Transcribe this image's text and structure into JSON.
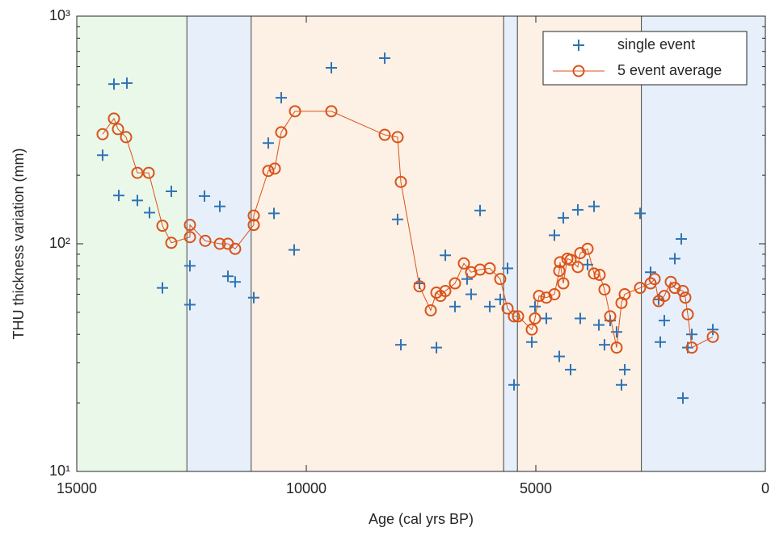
{
  "chart_data": {
    "type": "scatter-line",
    "x_label": "Age (cal yrs BP)",
    "y_label": "THU thickness variation (mm)",
    "xlim": [
      15000,
      0
    ],
    "xticks": [
      15000,
      10000,
      5000,
      0
    ],
    "ylim": [
      10,
      1000
    ],
    "yticks": [
      {
        "value": 10,
        "label": "10¹"
      },
      {
        "value": 100,
        "label": "10²"
      },
      {
        "value": 1000,
        "label": "10³"
      }
    ],
    "y_scale": "log",
    "legend_position": "upper right",
    "bands": [
      {
        "from": 15000,
        "to": 12600,
        "color": "#eaf8ea"
      },
      {
        "from": 12600,
        "to": 11200,
        "color": "#e7f0fa"
      },
      {
        "from": 11200,
        "to": 5700,
        "color": "#fdf0e5"
      },
      {
        "from": 5700,
        "to": 5400,
        "color": "#e7f0fa"
      },
      {
        "from": 5400,
        "to": 2700,
        "color": "#fdf0e5"
      },
      {
        "from": 2700,
        "to": 0,
        "color": "#e7f0fa"
      }
    ],
    "series": [
      {
        "name": "single event",
        "color": "#2f74b5",
        "marker": "plus",
        "x": [
          14437,
          14190,
          13908,
          14085,
          13680,
          13416,
          12940,
          13134,
          12535,
          12535,
          12218,
          11884,
          11708,
          11550,
          11145,
          10828,
          10704,
          10546,
          10264,
          9454,
          8292,
          8011,
          7940,
          7535,
          7165,
          6972,
          6761,
          6497,
          6409,
          6215,
          6004,
          5775,
          5616,
          5475,
          5088,
          5018,
          4771,
          4595,
          4489,
          4401,
          4243,
          4085,
          4032,
          3873,
          3732,
          3627,
          3504,
          3380,
          3240,
          3134,
          3063,
          2729,
          2500,
          2324,
          2289,
          2201,
          1972,
          1831,
          1796,
          1690,
          1602,
          1144
        ],
        "values": [
          245,
          503,
          508,
          163,
          155,
          137,
          170,
          64,
          80,
          54,
          162,
          146,
          72,
          68,
          58,
          277,
          136,
          438,
          94,
          593,
          654,
          128,
          36,
          67,
          35,
          89,
          53,
          70,
          60,
          140,
          53,
          57,
          78,
          24,
          37,
          53,
          47,
          109,
          32,
          130,
          28,
          141,
          47,
          81,
          146,
          44,
          36,
          46,
          41,
          24,
          28,
          136,
          75,
          57,
          37,
          46,
          86,
          105,
          21,
          35,
          40,
          42
        ]
      },
      {
        "name": "5 event average",
        "color": "#d95319",
        "marker": "circle",
        "x": [
          14437,
          14190,
          14102,
          13926,
          13680,
          13433,
          13134,
          12940,
          12535,
          12535,
          12201,
          11884,
          11708,
          11550,
          11145,
          11145,
          10828,
          10687,
          10546,
          10246,
          9454,
          8292,
          8011,
          7940,
          7535,
          7289,
          7165,
          7077,
          6972,
          6761,
          6567,
          6409,
          6215,
          6004,
          5775,
          5616,
          5475,
          5387,
          5088,
          5018,
          4930,
          4771,
          4595,
          4489,
          4472,
          4401,
          4313,
          4243,
          4085,
          4032,
          3873,
          3732,
          3609,
          3504,
          3380,
          3240,
          3134,
          3063,
          2729,
          2500,
          2412,
          2324,
          2201,
          2060,
          1972,
          1796,
          1743,
          1690,
          1602,
          1144
        ],
        "values": [
          303,
          355,
          319,
          294,
          205,
          205,
          120,
          101,
          107,
          121,
          103,
          100,
          100,
          95,
          121,
          133,
          209,
          214,
          309,
          382,
          382,
          301,
          294,
          187,
          65,
          51,
          61,
          59,
          62,
          67,
          82,
          75,
          77,
          78,
          70,
          52,
          48,
          48,
          42,
          47,
          59,
          58,
          60,
          76,
          83,
          67,
          86,
          85,
          79,
          91,
          95,
          74,
          73,
          63,
          48,
          35,
          55,
          60,
          64,
          67,
          70,
          56,
          59,
          68,
          64,
          62,
          58,
          49,
          35,
          39
        ]
      }
    ]
  }
}
